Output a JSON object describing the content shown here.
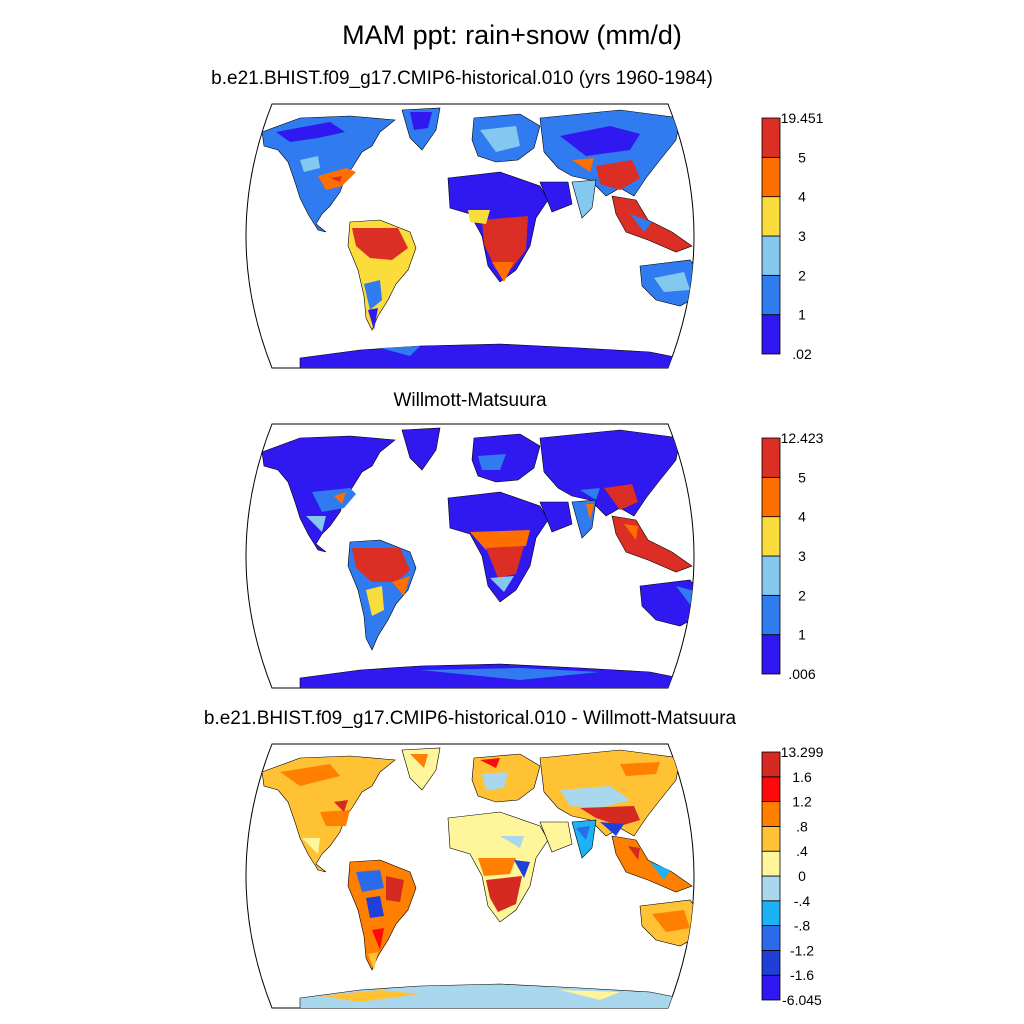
{
  "title": "MAM ppt: rain+snow (mm/d)",
  "panels": [
    {
      "id": "model",
      "title": "b.e21.BHIST.f09_g17.CMIP6-historical.010 (yrs 1960-1984)",
      "colorbar": {
        "labels": [
          "19.451",
          "5",
          "4",
          "3",
          "2",
          "1",
          ".02"
        ],
        "colors": [
          "#2F18F0",
          "#2F7BEF",
          "#84C8F0",
          "#FADD3B",
          "#FF6E00",
          "#DB2E24"
        ]
      }
    },
    {
      "id": "obs",
      "title": "Willmott-Matsuura",
      "colorbar": {
        "labels": [
          "12.423",
          "5",
          "4",
          "3",
          "2",
          "1",
          ".006"
        ],
        "colors": [
          "#2F18F0",
          "#2F7BEF",
          "#84C8F0",
          "#FADD3B",
          "#FF6E00",
          "#DB2E24"
        ]
      }
    },
    {
      "id": "diff",
      "title": "b.e21.BHIST.f09_g17.CMIP6-historical.010 - Willmott-Matsuura",
      "colorbar": {
        "labels": [
          "13.299",
          "1.6",
          "1.2",
          ".8",
          ".4",
          "0",
          "-.4",
          "-.8",
          "-1.2",
          "-1.6",
          "-6.045"
        ],
        "colors": [
          "#2F18F0",
          "#1F3FD8",
          "#2B6BEB",
          "#1BB3F5",
          "#A8D7EE",
          "#FFF59A",
          "#FFC234",
          "#FF7F00",
          "#FF0A0A",
          "#D42A22"
        ]
      }
    }
  ]
}
